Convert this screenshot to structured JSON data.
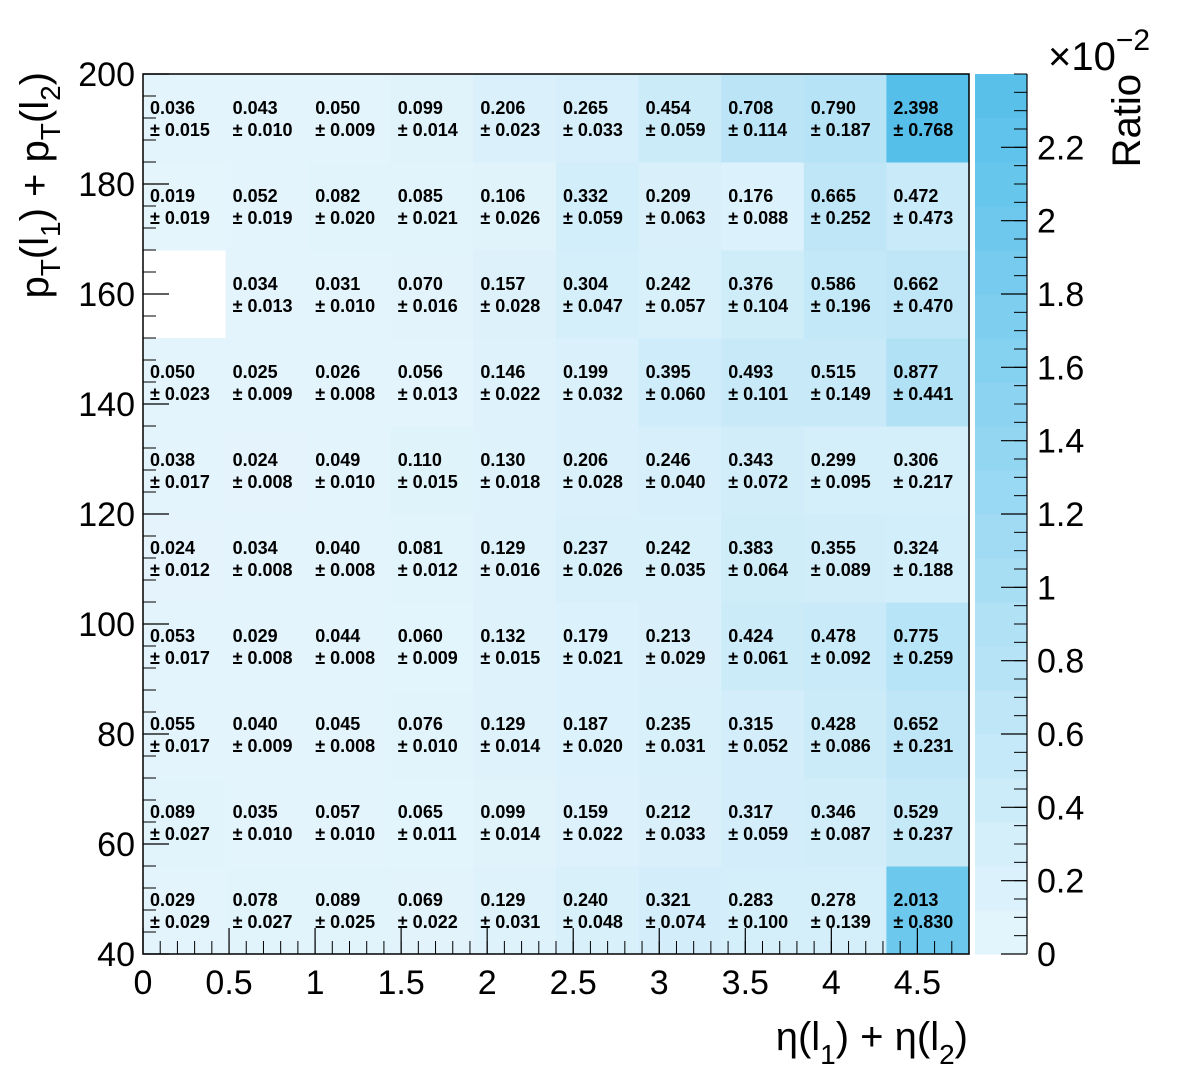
{
  "chart_data": {
    "type": "heatmap",
    "xlabel": "η(l1) + η(l2)",
    "ylabel": "pT(l1) + pT(l2)",
    "zlabel": "Ratio",
    "zscale_label": "×10",
    "zscale_exponent": "−2",
    "xlim": [
      0,
      4.8
    ],
    "ylim": [
      40,
      200
    ],
    "zlim": [
      0,
      2.4
    ],
    "x_bin_edges": [
      0,
      0.48,
      0.96,
      1.44,
      1.92,
      2.4,
      2.88,
      3.36,
      3.84,
      4.32,
      4.8
    ],
    "y_bin_edges": [
      40,
      56,
      72,
      88,
      104,
      120,
      136,
      152,
      168,
      184,
      200
    ],
    "x_ticks": [
      "0",
      "0.5",
      "1",
      "1.5",
      "2",
      "2.5",
      "3",
      "3.5",
      "4",
      "4.5"
    ],
    "x_tick_values": [
      0,
      0.5,
      1,
      1.5,
      2,
      2.5,
      3,
      3.5,
      4,
      4.5
    ],
    "y_ticks": [
      "40",
      "60",
      "80",
      "100",
      "120",
      "140",
      "160",
      "180",
      "200"
    ],
    "y_tick_values": [
      40,
      60,
      80,
      100,
      120,
      140,
      160,
      180,
      200
    ],
    "z_ticks": [
      "0",
      "0.2",
      "0.4",
      "0.6",
      "0.8",
      "1",
      "1.2",
      "1.4",
      "1.6",
      "1.8",
      "2",
      "2.2"
    ],
    "z_tick_values": [
      0,
      0.2,
      0.4,
      0.6,
      0.8,
      1,
      1.2,
      1.4,
      1.6,
      1.8,
      2,
      2.2
    ],
    "colors": {
      "low": "#e6f5fc",
      "high": "#55bfea"
    },
    "rows": [
      {
        "values": [
          "0.029",
          "0.078",
          "0.089",
          "0.069",
          "0.129",
          "0.240",
          "0.321",
          "0.283",
          "0.278",
          "2.013"
        ],
        "errors": [
          "± 0.029",
          "± 0.027",
          "± 0.025",
          "± 0.022",
          "± 0.031",
          "± 0.048",
          "± 0.074",
          "± 0.100",
          "± 0.139",
          "± 0.830"
        ]
      },
      {
        "values": [
          "0.089",
          "0.035",
          "0.057",
          "0.065",
          "0.099",
          "0.159",
          "0.212",
          "0.317",
          "0.346",
          "0.529"
        ],
        "errors": [
          "± 0.027",
          "± 0.010",
          "± 0.010",
          "± 0.011",
          "± 0.014",
          "± 0.022",
          "± 0.033",
          "± 0.059",
          "± 0.087",
          "± 0.237"
        ]
      },
      {
        "values": [
          "0.055",
          "0.040",
          "0.045",
          "0.076",
          "0.129",
          "0.187",
          "0.235",
          "0.315",
          "0.428",
          "0.652"
        ],
        "errors": [
          "± 0.017",
          "± 0.009",
          "± 0.008",
          "± 0.010",
          "± 0.014",
          "± 0.020",
          "± 0.031",
          "± 0.052",
          "± 0.086",
          "± 0.231"
        ]
      },
      {
        "values": [
          "0.053",
          "0.029",
          "0.044",
          "0.060",
          "0.132",
          "0.179",
          "0.213",
          "0.424",
          "0.478",
          "0.775"
        ],
        "errors": [
          "± 0.017",
          "± 0.008",
          "± 0.008",
          "± 0.009",
          "± 0.015",
          "± 0.021",
          "± 0.029",
          "± 0.061",
          "± 0.092",
          "± 0.259"
        ]
      },
      {
        "values": [
          "0.024",
          "0.034",
          "0.040",
          "0.081",
          "0.129",
          "0.237",
          "0.242",
          "0.383",
          "0.355",
          "0.324"
        ],
        "errors": [
          "± 0.012",
          "± 0.008",
          "± 0.008",
          "± 0.012",
          "± 0.016",
          "± 0.026",
          "± 0.035",
          "± 0.064",
          "± 0.089",
          "± 0.188"
        ]
      },
      {
        "values": [
          "0.038",
          "0.024",
          "0.049",
          "0.110",
          "0.130",
          "0.206",
          "0.246",
          "0.343",
          "0.299",
          "0.306"
        ],
        "errors": [
          "± 0.017",
          "± 0.008",
          "± 0.010",
          "± 0.015",
          "± 0.018",
          "± 0.028",
          "± 0.040",
          "± 0.072",
          "± 0.095",
          "± 0.217"
        ]
      },
      {
        "values": [
          "0.050",
          "0.025",
          "0.026",
          "0.056",
          "0.146",
          "0.199",
          "0.395",
          "0.493",
          "0.515",
          "0.877"
        ],
        "errors": [
          "± 0.023",
          "± 0.009",
          "± 0.008",
          "± 0.013",
          "± 0.022",
          "± 0.032",
          "± 0.060",
          "± 0.101",
          "± 0.149",
          "± 0.441"
        ]
      },
      {
        "values": [
          null,
          "0.034",
          "0.031",
          "0.070",
          "0.157",
          "0.304",
          "0.242",
          "0.376",
          "0.586",
          "0.662"
        ],
        "errors": [
          null,
          "± 0.013",
          "± 0.010",
          "± 0.016",
          "± 0.028",
          "± 0.047",
          "± 0.057",
          "± 0.104",
          "± 0.196",
          "± 0.470"
        ]
      },
      {
        "values": [
          "0.019",
          "0.052",
          "0.082",
          "0.085",
          "0.106",
          "0.332",
          "0.209",
          "0.176",
          "0.665",
          "0.472"
        ],
        "errors": [
          "± 0.019",
          "± 0.019",
          "± 0.020",
          "± 0.021",
          "± 0.026",
          "± 0.059",
          "± 0.063",
          "± 0.088",
          "± 0.252",
          "± 0.473"
        ]
      },
      {
        "values": [
          "0.036",
          "0.043",
          "0.050",
          "0.099",
          "0.206",
          "0.265",
          "0.454",
          "0.708",
          "0.790",
          "2.398"
        ],
        "errors": [
          "± 0.015",
          "± 0.010",
          "± 0.009",
          "± 0.014",
          "± 0.023",
          "± 0.033",
          "± 0.059",
          "± 0.114",
          "± 0.187",
          "± 0.768"
        ]
      }
    ]
  }
}
